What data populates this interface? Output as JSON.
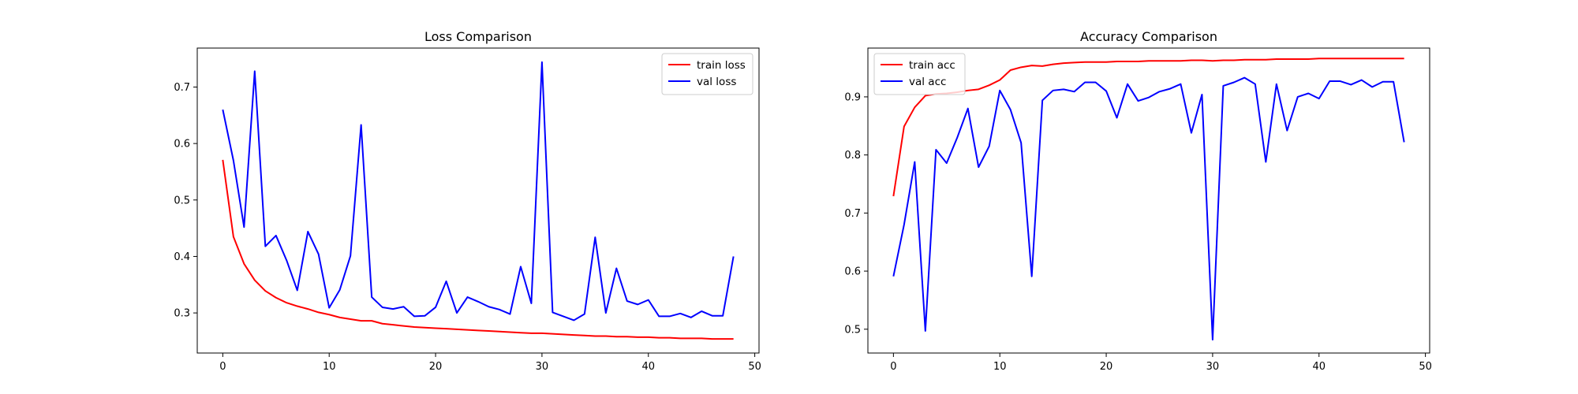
{
  "chart_data": [
    {
      "type": "line",
      "title": "Loss Comparison",
      "xlabel": "",
      "ylabel": "",
      "xlim": [
        -2.4,
        50.4
      ],
      "ylim": [
        0.229,
        0.769
      ],
      "xticks": [
        0,
        10,
        20,
        30,
        40,
        50
      ],
      "yticks": [
        0.3,
        0.4,
        0.5,
        0.6,
        0.7
      ],
      "xtick_labels": [
        "0",
        "10",
        "20",
        "30",
        "40",
        "50"
      ],
      "ytick_labels": [
        "0.3",
        "0.4",
        "0.5",
        "0.6",
        "0.7"
      ],
      "grid": false,
      "legend_position": "top-right",
      "x": [
        0,
        1,
        2,
        3,
        4,
        5,
        6,
        7,
        8,
        9,
        10,
        11,
        12,
        13,
        14,
        15,
        16,
        17,
        18,
        19,
        20,
        21,
        22,
        23,
        24,
        25,
        26,
        27,
        28,
        29,
        30,
        31,
        32,
        33,
        34,
        35,
        36,
        37,
        38,
        39,
        40,
        41,
        42,
        43,
        44,
        45,
        46,
        47,
        48
      ],
      "series": [
        {
          "name": "train loss",
          "color": "#ff0000",
          "values": [
            0.571,
            0.435,
            0.387,
            0.358,
            0.339,
            0.327,
            0.318,
            0.312,
            0.307,
            0.301,
            0.297,
            0.292,
            0.289,
            0.286,
            0.286,
            0.281,
            0.279,
            0.277,
            0.275,
            0.274,
            0.273,
            0.272,
            0.271,
            0.27,
            0.269,
            0.268,
            0.267,
            0.266,
            0.265,
            0.264,
            0.264,
            0.263,
            0.262,
            0.261,
            0.26,
            0.259,
            0.259,
            0.258,
            0.258,
            0.257,
            0.257,
            0.256,
            0.256,
            0.255,
            0.255,
            0.255,
            0.254,
            0.254,
            0.254
          ]
        },
        {
          "name": "val loss",
          "color": "#0000ff",
          "values": [
            0.66,
            0.57,
            0.452,
            0.728,
            0.418,
            0.437,
            0.393,
            0.34,
            0.444,
            0.404,
            0.309,
            0.341,
            0.401,
            0.633,
            0.328,
            0.31,
            0.307,
            0.311,
            0.294,
            0.295,
            0.31,
            0.356,
            0.3,
            0.328,
            0.32,
            0.311,
            0.306,
            0.298,
            0.382,
            0.317,
            0.744,
            0.301,
            0.294,
            0.287,
            0.298,
            0.434,
            0.3,
            0.379,
            0.321,
            0.315,
            0.323,
            0.294,
            0.294,
            0.299,
            0.292,
            0.303,
            0.295,
            0.295,
            0.4
          ]
        }
      ]
    },
    {
      "type": "line",
      "title": "Accuracy Comparison",
      "xlabel": "",
      "ylabel": "",
      "xlim": [
        -2.4,
        50.4
      ],
      "ylim": [
        0.459,
        0.984
      ],
      "xticks": [
        0,
        10,
        20,
        30,
        40,
        50
      ],
      "yticks": [
        0.5,
        0.6,
        0.7,
        0.8,
        0.9
      ],
      "xtick_labels": [
        "0",
        "10",
        "20",
        "30",
        "40",
        "50"
      ],
      "ytick_labels": [
        "0.5",
        "0.6",
        "0.7",
        "0.8",
        "0.9"
      ],
      "grid": false,
      "legend_position": "top-left",
      "x": [
        0,
        1,
        2,
        3,
        4,
        5,
        6,
        7,
        8,
        9,
        10,
        11,
        12,
        13,
        14,
        15,
        16,
        17,
        18,
        19,
        20,
        21,
        22,
        23,
        24,
        25,
        26,
        27,
        28,
        29,
        30,
        31,
        32,
        33,
        34,
        35,
        36,
        37,
        38,
        39,
        40,
        41,
        42,
        43,
        44,
        45,
        46,
        47,
        48
      ],
      "series": [
        {
          "name": "train acc",
          "color": "#ff0000",
          "values": [
            0.729,
            0.849,
            0.882,
            0.902,
            0.905,
            0.906,
            0.908,
            0.911,
            0.913,
            0.92,
            0.929,
            0.946,
            0.951,
            0.954,
            0.953,
            0.956,
            0.958,
            0.959,
            0.96,
            0.96,
            0.96,
            0.961,
            0.961,
            0.961,
            0.962,
            0.962,
            0.962,
            0.962,
            0.963,
            0.963,
            0.962,
            0.963,
            0.963,
            0.964,
            0.964,
            0.964,
            0.965,
            0.965,
            0.965,
            0.965,
            0.966,
            0.966,
            0.966,
            0.966,
            0.966,
            0.966,
            0.966,
            0.966,
            0.966
          ]
        },
        {
          "name": "val acc",
          "color": "#0000ff",
          "values": [
            0.591,
            0.68,
            0.788,
            0.497,
            0.809,
            0.786,
            0.83,
            0.88,
            0.779,
            0.815,
            0.911,
            0.878,
            0.821,
            0.591,
            0.894,
            0.911,
            0.913,
            0.909,
            0.925,
            0.925,
            0.91,
            0.864,
            0.922,
            0.893,
            0.899,
            0.909,
            0.914,
            0.922,
            0.838,
            0.904,
            0.482,
            0.919,
            0.925,
            0.933,
            0.922,
            0.788,
            0.922,
            0.842,
            0.9,
            0.906,
            0.897,
            0.927,
            0.927,
            0.921,
            0.929,
            0.917,
            0.926,
            0.926,
            0.822
          ]
        }
      ]
    }
  ]
}
